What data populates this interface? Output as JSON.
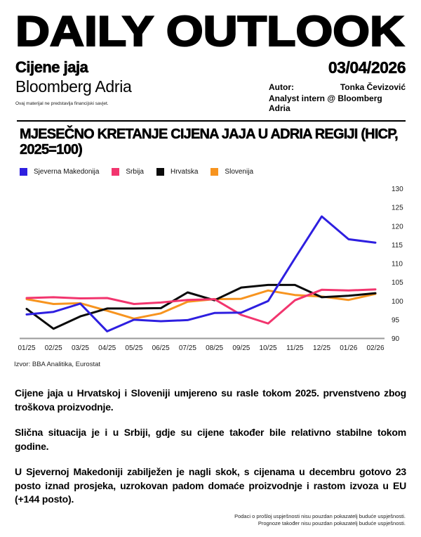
{
  "header": {
    "masthead": "DAILY OUTLOOK",
    "topic": "Cijene jaja",
    "brand": "Bloomberg Adria",
    "disclaimer": "Ovaj materijal ne predstavlja financijski savjet.",
    "date": "03/04/2026",
    "author_label": "Autor:",
    "author_name": "Tonka Čevizović",
    "author_title": "Analyst intern @ Bloomberg Adria"
  },
  "chart": {
    "title_lines": [
      "MJESEČNO KRETANJE CIJENA JAJA U ADRIA REGIJI (HICP,",
      "2025=100)"
    ],
    "source": "Izvor: BBA Analitika, Eurostat"
  },
  "chart_data": {
    "type": "line",
    "title": "MJESEČNO KRETANJE CIJENA JAJA U ADRIA REGIJI (HICP, 2025=100)",
    "categories": [
      "01/25",
      "02/25",
      "03/25",
      "04/25",
      "05/25",
      "06/25",
      "07/25",
      "08/25",
      "09/25",
      "10/25",
      "11/25",
      "12/25",
      "01/26",
      "02/26"
    ],
    "series": [
      {
        "name": "Sjeverna Makedonija",
        "color": "#2e1fe0",
        "values": [
          96.4,
          97.1,
          99.3,
          91.9,
          95.0,
          94.6,
          94.9,
          96.8,
          96.9,
          100.0,
          111.4,
          122.6,
          116.5,
          115.6
        ]
      },
      {
        "name": "Srbija",
        "color": "#f2356e",
        "values": [
          100.8,
          101.0,
          100.7,
          100.8,
          99.2,
          99.6,
          100.3,
          100.5,
          96.3,
          94.0,
          100.2,
          103.0,
          102.8,
          103.1
        ]
      },
      {
        "name": "Hrvatska",
        "color": "#0a0a0a",
        "values": [
          97.9,
          92.6,
          95.9,
          98.0,
          98.0,
          98.1,
          102.3,
          100.2,
          103.6,
          104.3,
          104.3,
          101.0,
          101.4,
          102.1
        ]
      },
      {
        "name": "Slovenija",
        "color": "#f7941f",
        "values": [
          100.5,
          99.2,
          99.4,
          97.4,
          95.3,
          96.7,
          99.8,
          100.5,
          100.6,
          102.8,
          101.6,
          101.2,
          100.3,
          101.9
        ]
      }
    ],
    "xlabel": "",
    "ylabel": "",
    "ylim": [
      90,
      130
    ],
    "yticks": [
      90,
      95,
      100,
      105,
      110,
      115,
      120,
      125,
      130
    ],
    "grid": false,
    "legend_position": "top",
    "axis_color": "#9a9a9a",
    "tick_label_color": "#1a1a1a"
  },
  "body": {
    "paragraphs": [
      "Cijene jaja u Hrvatskoj i Sloveniji umjereno su rasle tokom 2025. prvenstveno zbog troškova proizvodnje.",
      "Slična situacija je i u Srbiji, gdje su cijene također bile relativno stabilne tokom godine.",
      "U Sjevernoj Makedoniji zabilježen je nagli skok, s cijenama u decembru gotovo 23 posto iznad prosjeka, uzrokovan padom domaće proizvodnje i rastom izvoza u EU (+144 posto)."
    ]
  },
  "footer": {
    "lines": [
      "Podaci o prošloj uspješnosti nisu pouzdan pokazatelj buduće uspješnosti.",
      "Prognoze također nisu pouzdan pokazatelj buduće uspješnosti."
    ]
  }
}
